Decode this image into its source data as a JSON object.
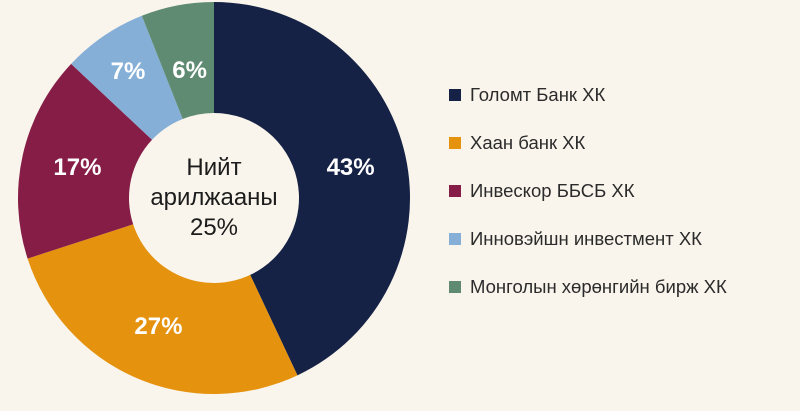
{
  "page": {
    "background_color": "#FAF5EC"
  },
  "chart_data": {
    "type": "pie",
    "subtype": "donut",
    "categories": [
      "Голомт Банк ХК",
      "Хаан банк ХК",
      "Инвескор ББСБ ХК",
      "Инновэйшн инвестмент ХК",
      "Монголын хөрөнгийн бирж ХК"
    ],
    "values": [
      43,
      27,
      17,
      7,
      6
    ],
    "labels": [
      "43%",
      "27%",
      "17%",
      "7%",
      "6%"
    ],
    "colors": [
      "#152245",
      "#E5920E",
      "#851D47",
      "#85AFD7",
      "#5E8B72"
    ],
    "center_text": {
      "line1": "Нийт",
      "line2": "арилжааны",
      "line3": "25%"
    },
    "legend_position": "right",
    "start_angle_deg": 0,
    "direction": "clockwise",
    "outer_radius": 196,
    "inner_radius": 85,
    "label_radii": [
      140,
      140,
      140,
      153,
      130
    ],
    "label_color": "#FFFFFF"
  }
}
